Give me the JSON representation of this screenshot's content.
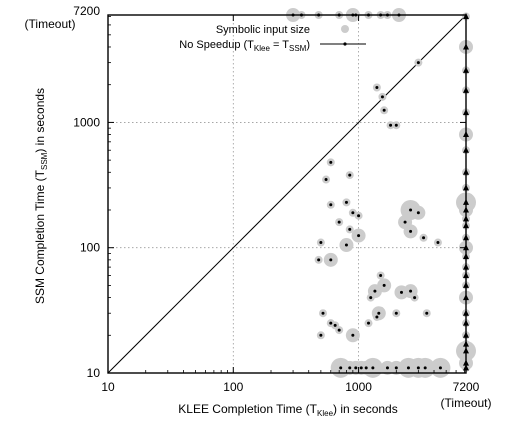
{
  "chart_data": {
    "type": "scatter",
    "log_scale": {
      "x": true,
      "y": true
    },
    "xlim": [
      10,
      7200
    ],
    "ylim": [
      10,
      7200
    ],
    "grid": true,
    "legend_placement": "top-right",
    "x_tick_labels": [
      "10",
      "100",
      "1000",
      "7200"
    ],
    "y_tick_labels": [
      "10",
      "100",
      "1000",
      "7200"
    ],
    "x_timeout_label": "(Timeout)",
    "y_timeout_label": "(Timeout)",
    "xlabel": {
      "main": "KLEE Completion Time (T",
      "sub": "Klee",
      "tail": ") in seconds"
    },
    "ylabel": {
      "main": "SSM Completion Time (T",
      "sub": "SSM",
      "tail": ") in seconds"
    },
    "legend": {
      "size_label": "Symbolic input size",
      "speedup_label": {
        "main": "No Speedup (T",
        "sub1": "Klee",
        "mid": " = T",
        "sub2": "SSM",
        "tail": ")"
      }
    },
    "colors": {
      "bubble": "#cccccc",
      "marker": "#000000",
      "grid": "#9a9a9a"
    },
    "points": [
      [
        300,
        7200,
        2
      ],
      [
        350,
        7200,
        1
      ],
      [
        480,
        7200,
        1
      ],
      [
        700,
        7200,
        1
      ],
      [
        900,
        7200,
        2
      ],
      [
        950,
        7200,
        1
      ],
      [
        1200,
        7200,
        1
      ],
      [
        1500,
        7200,
        1
      ],
      [
        1700,
        7200,
        1
      ],
      [
        2100,
        7200,
        2
      ],
      [
        3000,
        3000,
        1
      ],
      [
        1400,
        1900,
        1
      ],
      [
        1550,
        1600,
        1
      ],
      [
        1600,
        1250,
        1
      ],
      [
        1800,
        950,
        1
      ],
      [
        2000,
        950,
        1
      ],
      [
        600,
        480,
        1
      ],
      [
        550,
        350,
        1
      ],
      [
        850,
        380,
        1
      ],
      [
        800,
        230,
        1
      ],
      [
        600,
        220,
        1
      ],
      [
        700,
        160,
        1
      ],
      [
        900,
        190,
        1
      ],
      [
        850,
        140,
        1
      ],
      [
        1000,
        180,
        1
      ],
      [
        2600,
        200,
        3
      ],
      [
        3000,
        190,
        2
      ],
      [
        2350,
        160,
        2
      ],
      [
        2600,
        135,
        2
      ],
      [
        3300,
        120,
        1
      ],
      [
        4300,
        110,
        1
      ],
      [
        1000,
        125,
        2
      ],
      [
        800,
        105,
        2
      ],
      [
        500,
        110,
        1
      ],
      [
        480,
        80,
        1
      ],
      [
        600,
        80,
        2
      ],
      [
        1500,
        60,
        1
      ],
      [
        1250,
        40,
        1
      ],
      [
        1350,
        45,
        2
      ],
      [
        1600,
        50,
        2
      ],
      [
        2200,
        44,
        2
      ],
      [
        2600,
        45,
        2
      ],
      [
        2800,
        40,
        1
      ],
      [
        1450,
        30,
        2
      ],
      [
        2000,
        30,
        1
      ],
      [
        3500,
        30,
        1
      ],
      [
        520,
        30,
        1
      ],
      [
        600,
        25,
        1
      ],
      [
        650,
        24,
        1
      ],
      [
        500,
        20,
        1
      ],
      [
        700,
        22,
        1
      ],
      [
        900,
        20,
        2
      ],
      [
        1200,
        25,
        1
      ],
      [
        1400,
        28,
        1
      ],
      [
        720,
        11,
        3
      ],
      [
        850,
        11,
        2
      ],
      [
        950,
        11,
        2
      ],
      [
        1050,
        11,
        2
      ],
      [
        1150,
        11,
        2
      ],
      [
        1300,
        11,
        3
      ],
      [
        1700,
        11,
        2
      ],
      [
        2000,
        11,
        2
      ],
      [
        2500,
        11,
        3
      ],
      [
        3000,
        11,
        3
      ],
      [
        3400,
        11,
        3
      ],
      [
        4500,
        11,
        3
      ],
      [
        7200,
        7000,
        1
      ],
      [
        7200,
        4000,
        2
      ],
      [
        7200,
        2600,
        1
      ],
      [
        7200,
        1800,
        1
      ],
      [
        7200,
        1200,
        1
      ],
      [
        7200,
        800,
        2
      ],
      [
        7200,
        600,
        1
      ],
      [
        7200,
        400,
        1
      ],
      [
        7200,
        300,
        1
      ],
      [
        7200,
        230,
        3
      ],
      [
        7200,
        200,
        2
      ],
      [
        7200,
        170,
        1
      ],
      [
        7200,
        150,
        1
      ],
      [
        7200,
        120,
        1
      ],
      [
        7200,
        100,
        2
      ],
      [
        7200,
        85,
        1
      ],
      [
        7200,
        70,
        1
      ],
      [
        7200,
        60,
        1
      ],
      [
        7200,
        50,
        1
      ],
      [
        7200,
        40,
        2
      ],
      [
        7200,
        30,
        1
      ],
      [
        7200,
        25,
        1
      ],
      [
        7200,
        20,
        1
      ],
      [
        7200,
        17,
        1
      ],
      [
        7200,
        15,
        3
      ],
      [
        7200,
        12,
        2
      ],
      [
        7200,
        11,
        1
      ]
    ],
    "size_note_levels": [
      1,
      2,
      3
    ]
  }
}
